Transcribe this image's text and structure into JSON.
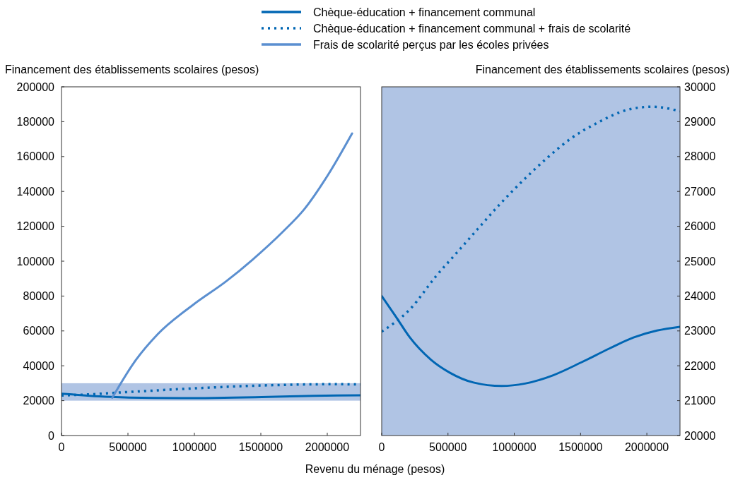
{
  "chart_data": [
    {
      "type": "line",
      "ylabel": "Financement des établissements scolaires (pesos)",
      "xlabel": "Revenu du ménage (pesos)",
      "xlim": [
        0,
        2250000
      ],
      "xticks": [
        0,
        500000,
        1000000,
        1500000,
        2000000
      ],
      "ylim": [
        0,
        200000
      ],
      "yticks": [
        0,
        20000,
        40000,
        60000,
        80000,
        100000,
        120000,
        140000,
        160000,
        180000,
        200000
      ],
      "legend": "top",
      "grid": false,
      "bands": [
        {
          "axis": "y",
          "from": 20000,
          "to": 30000,
          "color": "#b0c4e4"
        }
      ],
      "series": [
        {
          "name": "Chèque-éducation + financement communal",
          "color": "#0066b3",
          "line_style": "solid",
          "x": [
            0,
            107000,
            213000,
            373000,
            515000,
            692000,
            905000,
            1081000,
            1294000,
            1507000,
            1720000,
            1899000,
            2076000,
            2250000
          ],
          "values": [
            24000,
            23410,
            22810,
            22170,
            21800,
            21520,
            21420,
            21490,
            21730,
            22100,
            22500,
            22810,
            23010,
            23120
          ]
        },
        {
          "name": "Chèque-éducation + financement communal + frais de scolarité",
          "color": "#0066b3",
          "line_style": "dotted",
          "x": [
            0,
            213000,
            408000,
            568000,
            728000,
            888000,
            1065000,
            1242000,
            1428000,
            1633000,
            1863000,
            2040000,
            2250000
          ],
          "values": [
            22980,
            23620,
            24560,
            25250,
            25940,
            26620,
            27310,
            27940,
            28520,
            28980,
            29350,
            29430,
            29300
          ]
        },
        {
          "name": "Frais de scolarité perçus par les écoles privées",
          "color": "#5b8fd0",
          "line_style": "solid",
          "x": [
            382000,
            547000,
            725000,
            991000,
            1240000,
            1435000,
            1666000,
            1826000,
            2004000,
            2187000
          ],
          "values": [
            21700,
            42000,
            58200,
            75000,
            88500,
            100700,
            116900,
            129700,
            149300,
            173300
          ]
        }
      ]
    },
    {
      "type": "line",
      "ylabel": "Financement des établissements scolaires (pesos)",
      "xlim": [
        0,
        2250000
      ],
      "xticks": [
        0,
        500000,
        1000000,
        1500000,
        2000000
      ],
      "ylim": [
        20000,
        30000
      ],
      "yticks": [
        20000,
        21000,
        22000,
        23000,
        24000,
        25000,
        26000,
        27000,
        28000,
        29000,
        30000
      ],
      "grid": false,
      "bands": [
        {
          "axis": "y",
          "from": 20000,
          "to": 30000,
          "color": "#b0c4e4"
        }
      ],
      "series": [
        {
          "color": "#0066b3",
          "line_style": "solid",
          "x": [
            0,
            107000,
            213000,
            373000,
            515000,
            692000,
            905000,
            1081000,
            1294000,
            1507000,
            1720000,
            1899000,
            2076000,
            2250000
          ],
          "values": [
            24000,
            23410,
            22810,
            22170,
            21800,
            21520,
            21420,
            21490,
            21730,
            22100,
            22500,
            22810,
            23010,
            23120
          ]
        },
        {
          "color": "#0066b3",
          "line_style": "dotted",
          "x": [
            0,
            213000,
            408000,
            568000,
            728000,
            888000,
            1065000,
            1242000,
            1428000,
            1633000,
            1863000,
            2040000,
            2250000
          ],
          "values": [
            22980,
            23620,
            24560,
            25250,
            25940,
            26620,
            27310,
            27940,
            28520,
            28980,
            29350,
            29430,
            29300
          ]
        }
      ]
    }
  ]
}
